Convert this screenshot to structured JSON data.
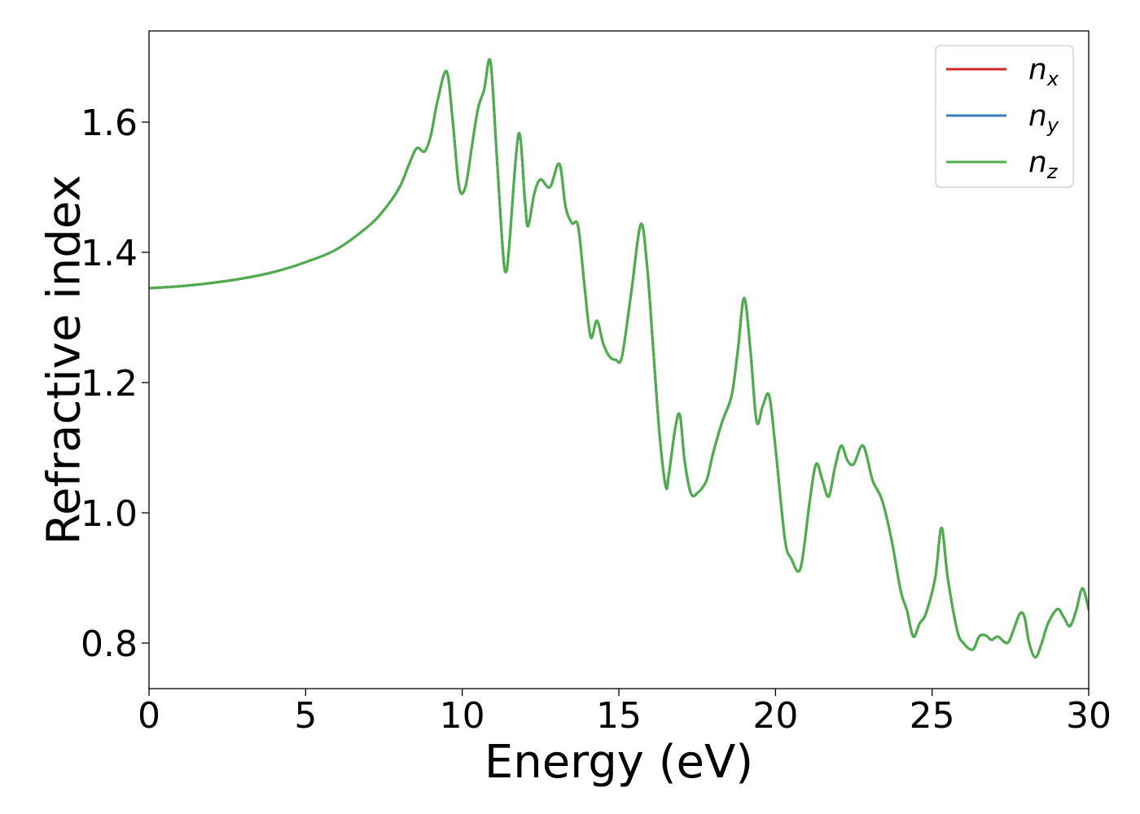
{
  "chart_data": {
    "type": "line",
    "title": "",
    "xlabel": "Energy (eV)",
    "ylabel": "Refractive index",
    "xlim": [
      0,
      30
    ],
    "ylim": [
      0.73,
      1.74
    ],
    "x_ticks": [
      0,
      5,
      10,
      15,
      20,
      25,
      30
    ],
    "y_ticks": [
      0.8,
      1.0,
      1.2,
      1.4,
      1.6
    ],
    "grid": false,
    "legend": "top-right",
    "series": [
      {
        "name": "n_x",
        "label_base": "n",
        "label_sub": "x",
        "color": "#d62728",
        "x": [
          0,
          1,
          2,
          3,
          4,
          5,
          6,
          7,
          7.5,
          8,
          8.3,
          8.55,
          8.8,
          9.0,
          9.2,
          9.5,
          9.7,
          9.9,
          10.1,
          10.3,
          10.5,
          10.7,
          10.9,
          11.1,
          11.3,
          11.4,
          11.5,
          11.8,
          12.0,
          12.1,
          12.3,
          12.5,
          12.8,
          13.1,
          13.3,
          13.5,
          13.7,
          13.9,
          14.1,
          14.3,
          14.5,
          14.7,
          14.9,
          15.1,
          15.4,
          15.7,
          15.9,
          16.1,
          16.3,
          16.5,
          16.6,
          16.8,
          16.95,
          17.1,
          17.3,
          17.5,
          17.8,
          18.0,
          18.3,
          18.6,
          18.8,
          19.0,
          19.2,
          19.4,
          19.6,
          19.8,
          20.0,
          20.3,
          20.5,
          20.8,
          21.1,
          21.3,
          21.5,
          21.7,
          21.9,
          22.1,
          22.3,
          22.5,
          22.8,
          23.1,
          23.4,
          23.7,
          24.0,
          24.2,
          24.4,
          24.6,
          24.8,
          25.1,
          25.3,
          25.5,
          25.8,
          26.0,
          26.3,
          26.5,
          26.7,
          26.9,
          27.1,
          27.4,
          27.6,
          27.8,
          27.95,
          28.1,
          28.3,
          28.5,
          28.7,
          29.0,
          29.2,
          29.4,
          29.6,
          29.8,
          30.0
        ],
        "y": [
          1.345,
          1.348,
          1.353,
          1.36,
          1.37,
          1.385,
          1.405,
          1.44,
          1.465,
          1.5,
          1.535,
          1.56,
          1.555,
          1.58,
          1.63,
          1.678,
          1.6,
          1.5,
          1.5,
          1.56,
          1.62,
          1.65,
          1.693,
          1.55,
          1.4,
          1.37,
          1.41,
          1.582,
          1.48,
          1.44,
          1.49,
          1.512,
          1.5,
          1.536,
          1.47,
          1.445,
          1.44,
          1.35,
          1.27,
          1.295,
          1.26,
          1.24,
          1.235,
          1.24,
          1.34,
          1.443,
          1.38,
          1.25,
          1.12,
          1.04,
          1.06,
          1.13,
          1.15,
          1.08,
          1.03,
          1.03,
          1.05,
          1.09,
          1.14,
          1.18,
          1.25,
          1.33,
          1.25,
          1.14,
          1.165,
          1.18,
          1.1,
          0.96,
          0.93,
          0.915,
          1.02,
          1.075,
          1.05,
          1.025,
          1.07,
          1.103,
          1.08,
          1.075,
          1.103,
          1.05,
          1.02,
          0.96,
          0.88,
          0.85,
          0.81,
          0.83,
          0.845,
          0.9,
          0.977,
          0.9,
          0.82,
          0.8,
          0.79,
          0.81,
          0.812,
          0.805,
          0.81,
          0.8,
          0.82,
          0.845,
          0.84,
          0.8,
          0.778,
          0.8,
          0.83,
          0.852,
          0.84,
          0.826,
          0.85,
          0.884,
          0.852
        ]
      },
      {
        "name": "n_y",
        "label_base": "n",
        "label_sub": "y",
        "color": "#377eb8",
        "x": [
          0,
          1,
          2,
          3,
          4,
          5,
          6,
          7,
          7.5,
          8,
          8.3,
          8.55,
          8.8,
          9.0,
          9.2,
          9.5,
          9.7,
          9.9,
          10.1,
          10.3,
          10.5,
          10.7,
          10.9,
          11.1,
          11.3,
          11.4,
          11.5,
          11.8,
          12.0,
          12.1,
          12.3,
          12.5,
          12.8,
          13.1,
          13.3,
          13.5,
          13.7,
          13.9,
          14.1,
          14.3,
          14.5,
          14.7,
          14.9,
          15.1,
          15.4,
          15.7,
          15.9,
          16.1,
          16.3,
          16.5,
          16.6,
          16.8,
          16.95,
          17.1,
          17.3,
          17.5,
          17.8,
          18.0,
          18.3,
          18.6,
          18.8,
          19.0,
          19.2,
          19.4,
          19.6,
          19.8,
          20.0,
          20.3,
          20.5,
          20.8,
          21.1,
          21.3,
          21.5,
          21.7,
          21.9,
          22.1,
          22.3,
          22.5,
          22.8,
          23.1,
          23.4,
          23.7,
          24.0,
          24.2,
          24.4,
          24.6,
          24.8,
          25.1,
          25.3,
          25.5,
          25.8,
          26.0,
          26.3,
          26.5,
          26.7,
          26.9,
          27.1,
          27.4,
          27.6,
          27.8,
          27.95,
          28.1,
          28.3,
          28.5,
          28.7,
          29.0,
          29.2,
          29.4,
          29.6,
          29.8,
          30.0
        ],
        "y": [
          1.345,
          1.348,
          1.353,
          1.36,
          1.37,
          1.385,
          1.405,
          1.44,
          1.465,
          1.5,
          1.535,
          1.56,
          1.555,
          1.58,
          1.63,
          1.678,
          1.6,
          1.5,
          1.5,
          1.56,
          1.62,
          1.65,
          1.693,
          1.55,
          1.4,
          1.37,
          1.41,
          1.582,
          1.48,
          1.44,
          1.49,
          1.512,
          1.5,
          1.536,
          1.47,
          1.445,
          1.44,
          1.35,
          1.27,
          1.295,
          1.26,
          1.24,
          1.235,
          1.24,
          1.34,
          1.443,
          1.38,
          1.25,
          1.12,
          1.04,
          1.06,
          1.13,
          1.15,
          1.08,
          1.03,
          1.03,
          1.05,
          1.09,
          1.14,
          1.18,
          1.25,
          1.33,
          1.25,
          1.14,
          1.165,
          1.18,
          1.1,
          0.96,
          0.93,
          0.915,
          1.02,
          1.075,
          1.05,
          1.025,
          1.07,
          1.103,
          1.08,
          1.075,
          1.103,
          1.05,
          1.02,
          0.96,
          0.88,
          0.85,
          0.81,
          0.83,
          0.845,
          0.9,
          0.977,
          0.9,
          0.82,
          0.8,
          0.79,
          0.81,
          0.812,
          0.805,
          0.81,
          0.8,
          0.82,
          0.845,
          0.84,
          0.8,
          0.778,
          0.8,
          0.83,
          0.852,
          0.84,
          0.826,
          0.85,
          0.884,
          0.852
        ]
      },
      {
        "name": "n_z",
        "label_base": "n",
        "label_sub": "z",
        "color": "#4daf4a",
        "x": [
          0,
          1,
          2,
          3,
          4,
          5,
          6,
          7,
          7.5,
          8,
          8.3,
          8.55,
          8.8,
          9.0,
          9.2,
          9.5,
          9.7,
          9.9,
          10.1,
          10.3,
          10.5,
          10.7,
          10.9,
          11.1,
          11.3,
          11.4,
          11.5,
          11.8,
          12.0,
          12.1,
          12.3,
          12.5,
          12.8,
          13.1,
          13.3,
          13.5,
          13.7,
          13.9,
          14.1,
          14.3,
          14.5,
          14.7,
          14.9,
          15.1,
          15.4,
          15.7,
          15.9,
          16.1,
          16.3,
          16.5,
          16.6,
          16.8,
          16.95,
          17.1,
          17.3,
          17.5,
          17.8,
          18.0,
          18.3,
          18.6,
          18.8,
          19.0,
          19.2,
          19.4,
          19.6,
          19.8,
          20.0,
          20.3,
          20.5,
          20.8,
          21.1,
          21.3,
          21.5,
          21.7,
          21.9,
          22.1,
          22.3,
          22.5,
          22.8,
          23.1,
          23.4,
          23.7,
          24.0,
          24.2,
          24.4,
          24.6,
          24.8,
          25.1,
          25.3,
          25.5,
          25.8,
          26.0,
          26.3,
          26.5,
          26.7,
          26.9,
          27.1,
          27.4,
          27.6,
          27.8,
          27.95,
          28.1,
          28.3,
          28.5,
          28.7,
          29.0,
          29.2,
          29.4,
          29.6,
          29.8,
          30.0
        ],
        "y": [
          1.345,
          1.348,
          1.353,
          1.36,
          1.37,
          1.385,
          1.405,
          1.44,
          1.465,
          1.5,
          1.535,
          1.56,
          1.555,
          1.58,
          1.63,
          1.678,
          1.6,
          1.5,
          1.5,
          1.56,
          1.62,
          1.65,
          1.693,
          1.55,
          1.4,
          1.37,
          1.41,
          1.582,
          1.48,
          1.44,
          1.49,
          1.512,
          1.5,
          1.536,
          1.47,
          1.445,
          1.44,
          1.35,
          1.27,
          1.295,
          1.26,
          1.24,
          1.235,
          1.24,
          1.34,
          1.443,
          1.38,
          1.25,
          1.12,
          1.04,
          1.06,
          1.13,
          1.15,
          1.08,
          1.03,
          1.03,
          1.05,
          1.09,
          1.14,
          1.18,
          1.25,
          1.33,
          1.25,
          1.14,
          1.165,
          1.18,
          1.1,
          0.96,
          0.93,
          0.915,
          1.02,
          1.075,
          1.05,
          1.025,
          1.07,
          1.103,
          1.08,
          1.075,
          1.103,
          1.05,
          1.02,
          0.96,
          0.88,
          0.85,
          0.81,
          0.83,
          0.845,
          0.9,
          0.977,
          0.9,
          0.82,
          0.8,
          0.79,
          0.81,
          0.812,
          0.805,
          0.81,
          0.8,
          0.82,
          0.845,
          0.84,
          0.8,
          0.778,
          0.8,
          0.83,
          0.852,
          0.84,
          0.826,
          0.85,
          0.884,
          0.852
        ]
      }
    ]
  }
}
